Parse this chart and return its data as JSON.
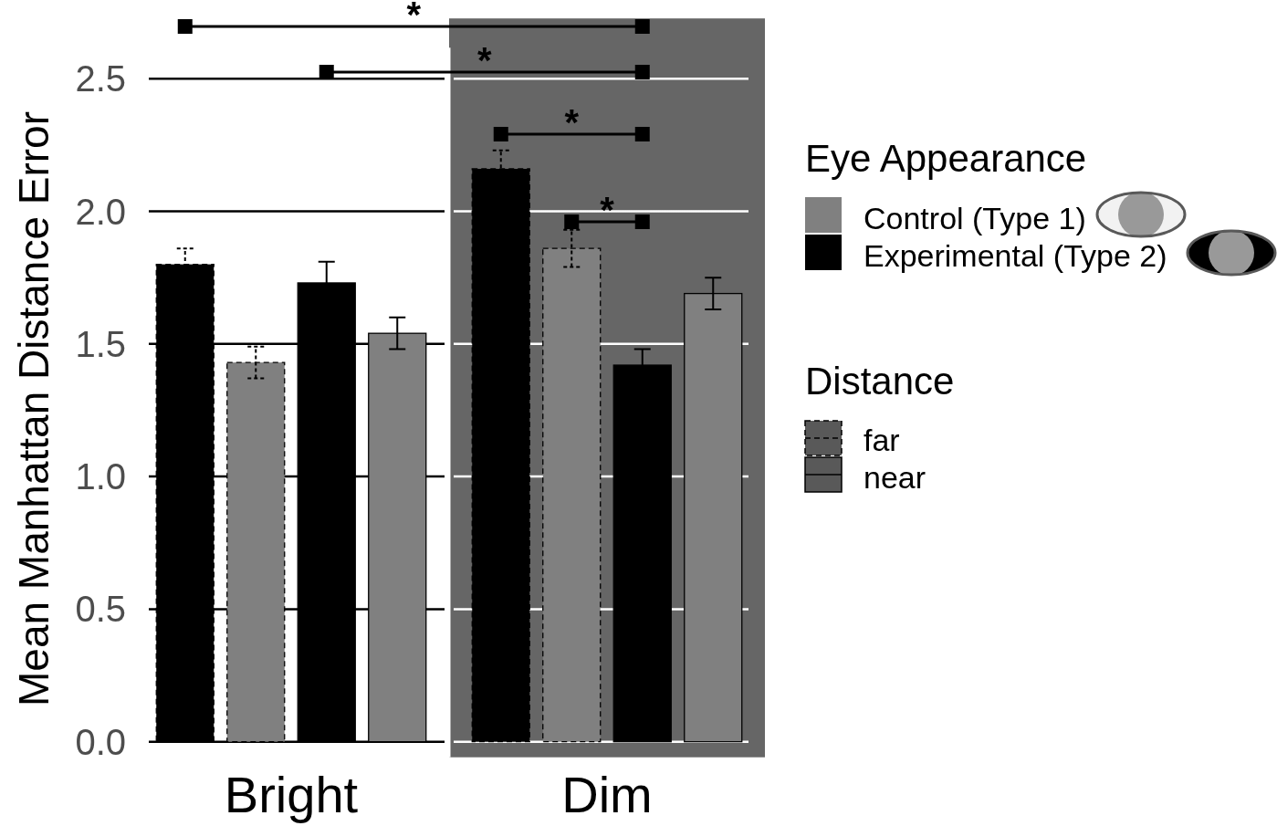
{
  "chart_data": {
    "type": "bar",
    "ylabel": "Mean Manhattan Distance Error",
    "legend_title": "Eye Appearance",
    "legend": "right",
    "grid": "y",
    "categories": [
      "Bright",
      "Dim"
    ],
    "series": [
      {
        "name": "Experimental (Type 2)",
        "color": "#000000",
        "line_style": "dashed",
        "values": [
          1.8,
          2.16
        ],
        "errors": [
          0.06,
          0.07
        ]
      },
      {
        "name": "Control (Type 1)",
        "color": "#808080",
        "line_style": "dashed",
        "values": [
          1.43,
          1.86
        ],
        "errors": [
          0.06,
          0.07
        ]
      },
      {
        "color": "#000000",
        "line_style": "solid",
        "values": [
          1.73,
          1.42
        ],
        "errors": [
          0.08,
          0.06
        ]
      },
      {
        "color": "#808080",
        "line_style": "solid",
        "values": [
          1.54,
          1.69
        ],
        "errors": [
          0.06,
          0.06
        ]
      }
    ],
    "ylim": [
      0,
      2.5
    ],
    "yticks": [
      {
        "value": 0,
        "label": "0.0"
      },
      0.5,
      {
        "value": 1,
        "label": "1.0"
      },
      1.5,
      {
        "value": 2,
        "label": "2.0"
      },
      2.5
    ],
    "bands": [
      {
        "axis": "x",
        "from": "Dim",
        "to": "Dim",
        "color": "#666666"
      }
    ],
    "annotations": [
      "Distance",
      "far",
      "near",
      "*",
      "*",
      "*",
      "*"
    ]
  }
}
